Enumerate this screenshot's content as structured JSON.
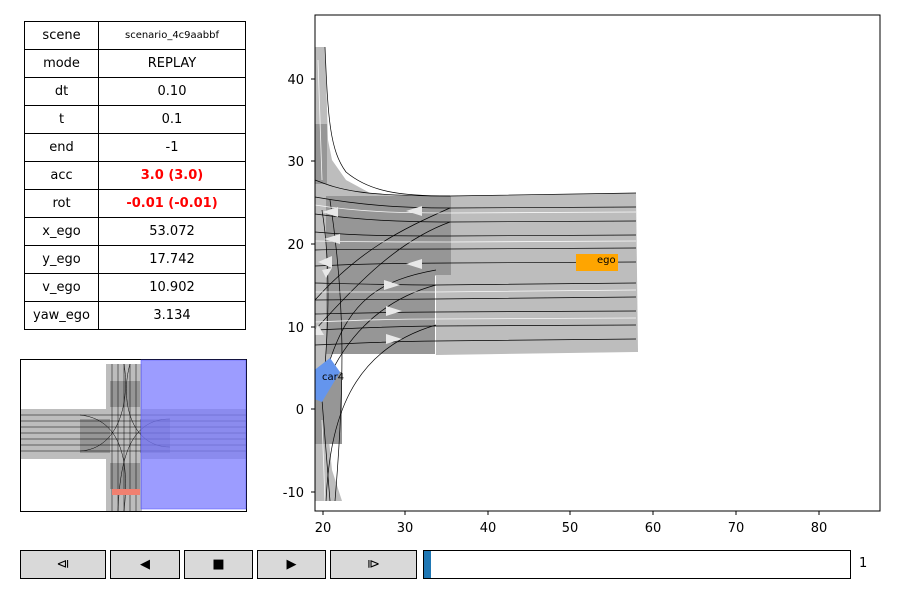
{
  "state_table": {
    "rows": [
      {
        "key": "scene",
        "value": "scenario_4c9aabbf"
      },
      {
        "key": "mode",
        "value": "REPLAY"
      },
      {
        "key": "dt",
        "value": "0.10"
      },
      {
        "key": "t",
        "value": "0.1"
      },
      {
        "key": "end",
        "value": "-1"
      },
      {
        "key": "acc",
        "value": "3.0 (3.0)"
      },
      {
        "key": "rot",
        "value": "-0.01 (-0.01)"
      },
      {
        "key": "x_ego",
        "value": "53.072"
      },
      {
        "key": "y_ego",
        "value": "17.742"
      },
      {
        "key": "v_ego",
        "value": "10.902"
      },
      {
        "key": "yaw_ego",
        "value": "3.134"
      }
    ],
    "alert_color": "#ff0000"
  },
  "plot": {
    "x_ticks": [
      "20",
      "30",
      "40",
      "50",
      "60",
      "70",
      "80"
    ],
    "y_ticks": [
      "-10",
      "0",
      "10",
      "20",
      "30",
      "40"
    ],
    "agents": [
      {
        "label": "ego",
        "color": "#ffa500"
      },
      {
        "label": "car4",
        "color": "#6495ed"
      }
    ],
    "road_color": "#bdbdbd",
    "crosswalk_color": "#969696"
  },
  "minimap": {
    "highlight_color": "#7b7bff",
    "marker_color": "#f08070"
  },
  "controls": {
    "buttons": [
      {
        "name": "step-back-button",
        "glyph": "⧏"
      },
      {
        "name": "play-reverse-button",
        "glyph": "◀"
      },
      {
        "name": "stop-button",
        "glyph": "■"
      },
      {
        "name": "play-button",
        "glyph": "▶"
      },
      {
        "name": "step-forward-button",
        "glyph": "⧐"
      }
    ],
    "slider_fill": 0.016,
    "slider_color": "#1f77b4",
    "frame_value": "1"
  }
}
